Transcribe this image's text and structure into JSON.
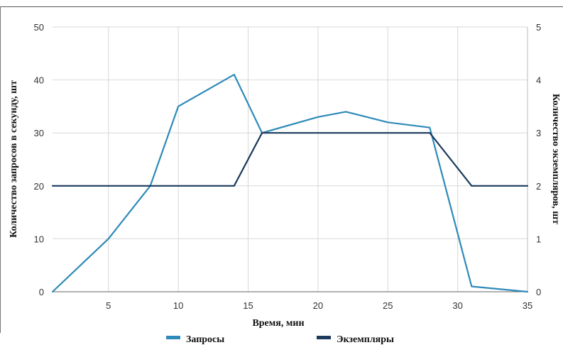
{
  "chart_data": {
    "type": "line",
    "xlabel": "Время, мин",
    "ylabel_left": "Количество запросов в секунду, шт",
    "ylabel_right": "Количество экземпляров, шт",
    "xlim": [
      1,
      35
    ],
    "ylim_left": [
      0,
      50
    ],
    "ylim_right": [
      0,
      5
    ],
    "x_ticks": [
      "5",
      "10",
      "15",
      "20",
      "25",
      "30",
      "35"
    ],
    "y_left_ticks": [
      "0",
      "10",
      "20",
      "30",
      "40",
      "50"
    ],
    "y_right_ticks": [
      "0",
      "1",
      "2",
      "3",
      "4",
      "5"
    ],
    "grid": true,
    "legend_position": "bottom",
    "series": [
      {
        "name": "Запросы",
        "axis": "left",
        "color": "#2E8AB8",
        "x": [
          1,
          5,
          8,
          10,
          14,
          16,
          20,
          22,
          25,
          28,
          31,
          35
        ],
        "y": [
          0,
          10,
          20,
          35,
          41,
          30,
          33,
          34,
          32,
          31,
          1,
          0
        ]
      },
      {
        "name": "Экземпляры",
        "axis": "right",
        "color": "#1B3A5C",
        "x": [
          1,
          14,
          16,
          28,
          31,
          35
        ],
        "y": [
          2,
          2,
          3,
          3,
          2,
          2
        ]
      }
    ]
  }
}
